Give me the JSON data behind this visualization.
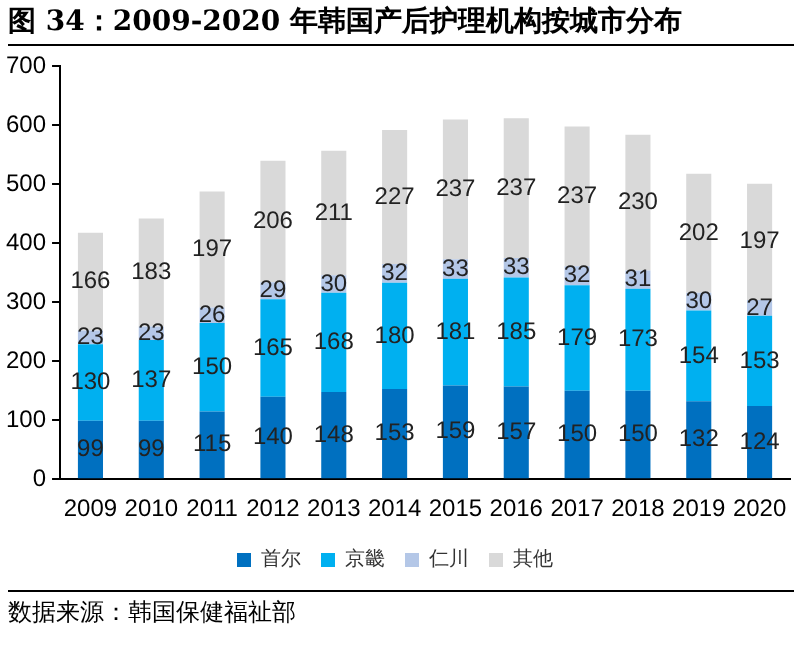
{
  "chart_data": {
    "type": "bar",
    "title": "图 34：2009-2020 年韩国产后护理机构按城市分布",
    "stacked": true,
    "categories": [
      "2009",
      "2010",
      "2011",
      "2012",
      "2013",
      "2014",
      "2015",
      "2016",
      "2017",
      "2018",
      "2019",
      "2020"
    ],
    "series": [
      {
        "name": "首尔",
        "color": "#0070c0",
        "values": [
          99,
          99,
          115,
          140,
          148,
          153,
          159,
          157,
          150,
          150,
          132,
          124
        ]
      },
      {
        "name": "京畿",
        "color": "#00b0f0",
        "values": [
          130,
          137,
          150,
          165,
          168,
          180,
          181,
          185,
          179,
          173,
          154,
          153
        ]
      },
      {
        "name": "仁川",
        "color": "#b4c7e7",
        "values": [
          23,
          23,
          26,
          29,
          30,
          32,
          33,
          33,
          32,
          31,
          30,
          27
        ]
      },
      {
        "name": "其他",
        "color": "#d9d9d9",
        "values": [
          166,
          183,
          197,
          206,
          211,
          227,
          237,
          237,
          237,
          230,
          202,
          197
        ]
      }
    ],
    "ylim": [
      0,
      700
    ],
    "yticks": [
      0,
      100,
      200,
      300,
      400,
      500,
      600,
      700
    ],
    "grid": false,
    "legend": "bottom",
    "data_labels": true,
    "annotations": [
      "数据来源：韩国保健福祉部"
    ]
  }
}
